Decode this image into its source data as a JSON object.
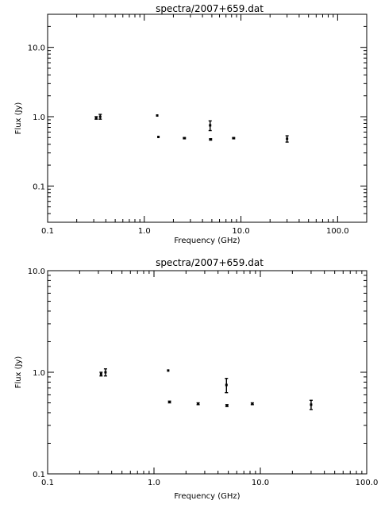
{
  "chart_data": [
    {
      "type": "scatter",
      "title": "spectra/2007+659.dat",
      "xlabel": "Frequency (GHz)",
      "ylabel": "Flux (Jy)",
      "xscale": "log",
      "yscale": "log",
      "xlim": [
        0.1,
        200
      ],
      "ylim": [
        0.03,
        30
      ],
      "xticks": [
        "0.1",
        "1.0",
        "10.0",
        "100.0"
      ],
      "yticks": [
        "0.1",
        "1.0",
        "10.0"
      ],
      "xtick_values": [
        0.1,
        1,
        10,
        100
      ],
      "ytick_values": [
        0.1,
        1,
        10
      ],
      "series": [
        {
          "x": [
            0.318,
            0.35,
            1.36,
            1.4,
            2.6,
            4.8,
            4.85,
            8.4,
            30
          ],
          "y": [
            0.96,
            1.0,
            1.04,
            0.51,
            0.49,
            0.75,
            0.47,
            0.49,
            0.48
          ],
          "yerr": [
            0.04,
            0.08,
            0.01,
            0.01,
            0.01,
            0.12,
            0.01,
            0.01,
            0.05
          ]
        }
      ]
    },
    {
      "type": "scatter",
      "title": "spectra/2007+659.dat",
      "xlabel": "Frequency (GHz)",
      "ylabel": "Flux (Jy)",
      "xscale": "log",
      "yscale": "log",
      "xlim": [
        0.1,
        100
      ],
      "ylim": [
        0.1,
        10
      ],
      "xticks": [
        "0.1",
        "1.0",
        "10.0",
        "100.0"
      ],
      "yticks": [
        "0.1",
        "1.0",
        "10.0"
      ],
      "xtick_values": [
        0.1,
        1,
        10,
        100
      ],
      "ytick_values": [
        0.1,
        1,
        10
      ],
      "series": [
        {
          "x": [
            0.318,
            0.35,
            1.36,
            1.4,
            2.6,
            4.8,
            4.85,
            8.4,
            30
          ],
          "y": [
            0.96,
            1.0,
            1.04,
            0.51,
            0.49,
            0.75,
            0.47,
            0.49,
            0.48
          ],
          "yerr": [
            0.04,
            0.08,
            0.01,
            0.01,
            0.01,
            0.12,
            0.01,
            0.01,
            0.05
          ]
        }
      ]
    }
  ]
}
